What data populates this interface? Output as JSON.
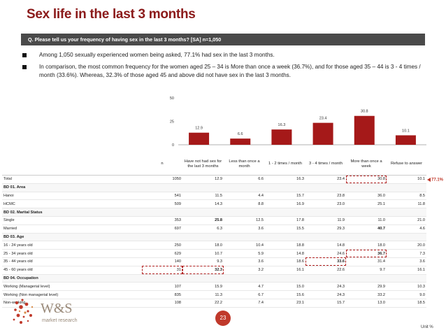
{
  "title": "Sex life in the last 3 months",
  "question": "Q. Please tell us your frequency of having sex in the last 3 months? [SA] n=1,050",
  "bullets": [
    "Among 1,050 sexually experienced women being asked, 77.1% had sex in the last 3 months.",
    "In comparison, the most common frequency for the women aged 25 – 34 is More than once a week (36.7%), and for those aged 35 – 44 is 3 - 4 times / month (33.6%). Whereas, 32.3% of those aged 45 and above did not have sex in the last 3 months."
  ],
  "chart_data": {
    "type": "bar",
    "categories": [
      "Have not had sex for the last 3 months",
      "Less than once a month",
      "1 - 2 times / month",
      "3 - 4 times / month",
      "More than once a week",
      "Refuse to answer"
    ],
    "values": [
      12.9,
      6.6,
      16.3,
      23.4,
      30.8,
      10.1
    ],
    "value_labels": [
      "12.9",
      "6.6",
      "16.3",
      "23.4",
      "30.8",
      "10.1"
    ],
    "yticks": [
      "0",
      "25",
      "50"
    ],
    "ylim": [
      0,
      50
    ],
    "color": "#a51919"
  },
  "table": {
    "headers": [
      "",
      "n",
      "Have not had sex for the last 3 months",
      "Less than once a month",
      "1 - 2 times / month",
      "3 - 4 times / month",
      "More than once a week",
      "Refuse to answer"
    ],
    "rows": [
      {
        "kind": "total",
        "cells": [
          "Total",
          "1050",
          "12.9",
          "6.6",
          "16.3",
          "23.4",
          "30.8",
          "10.1"
        ]
      },
      {
        "kind": "sec",
        "cells": [
          "BD 01. Area"
        ]
      },
      {
        "kind": "row",
        "cells": [
          "Hanoi",
          "541",
          "11.5",
          "4.4",
          "15.7",
          "23.8",
          "36.0",
          "8.5"
        ]
      },
      {
        "kind": "row",
        "cells": [
          "HCMC",
          "509",
          "14.3",
          "8.8",
          "16.9",
          "23.0",
          "25.1",
          "11.8"
        ]
      },
      {
        "kind": "sec",
        "cells": [
          "BD 02. Marital Status"
        ]
      },
      {
        "kind": "row",
        "cells": [
          "Single",
          "353",
          "25.8",
          "12.5",
          "17.8",
          "11.9",
          "11.0",
          "21.0"
        ]
      },
      {
        "kind": "row",
        "cells": [
          "Married",
          "697",
          "6.3",
          "3.6",
          "15.5",
          "29.3",
          "40.7",
          "4.6"
        ]
      },
      {
        "kind": "sec",
        "cells": [
          "BD 03. Age"
        ]
      },
      {
        "kind": "row",
        "cells": [
          "16 - 24 years old",
          "250",
          "18.0",
          "10.4",
          "18.8",
          "14.8",
          "18.0",
          "20.0"
        ]
      },
      {
        "kind": "row",
        "cells": [
          "25 - 34 years old",
          "629",
          "10.7",
          "5.9",
          "14.8",
          "24.6",
          "36.7",
          "7.3"
        ]
      },
      {
        "kind": "row",
        "cells": [
          "35 - 44 years old",
          "140",
          "9.3",
          "3.6",
          "18.6",
          "33.6",
          "31.4",
          "3.6"
        ]
      },
      {
        "kind": "row",
        "cells": [
          "45 - 60 years old",
          "31",
          "32.3",
          "3.2",
          "16.1",
          "22.6",
          "9.7",
          "16.1"
        ]
      },
      {
        "kind": "sec",
        "cells": [
          "BD 04. Occupation"
        ]
      },
      {
        "kind": "row",
        "cells": [
          "Working (Managerial level)",
          "107",
          "15.9",
          "4.7",
          "15.0",
          "24.3",
          "29.9",
          "10.3"
        ]
      },
      {
        "kind": "row",
        "cells": [
          "Working (Non managerial level)",
          "835",
          "11.3",
          "6.7",
          "15.6",
          "24.3",
          "33.2",
          "9.0"
        ]
      },
      {
        "kind": "row",
        "cells": [
          "Non-working",
          "108",
          "22.2",
          "7.4",
          "23.1",
          "15.7",
          "13.0",
          "18.5"
        ]
      }
    ],
    "bold_cells": [
      [
        5,
        2
      ],
      [
        6,
        6
      ],
      [
        9,
        6
      ],
      [
        10,
        5
      ],
      [
        11,
        2
      ]
    ],
    "boxed_cells": [
      [
        0,
        6
      ],
      [
        9,
        6
      ],
      [
        10,
        5
      ],
      [
        11,
        1
      ],
      [
        11,
        2
      ]
    ]
  },
  "total_note": "77.1%",
  "logo": {
    "name": "W&S",
    "sub": "market research"
  },
  "page_number": "23",
  "unit": "Unit %"
}
